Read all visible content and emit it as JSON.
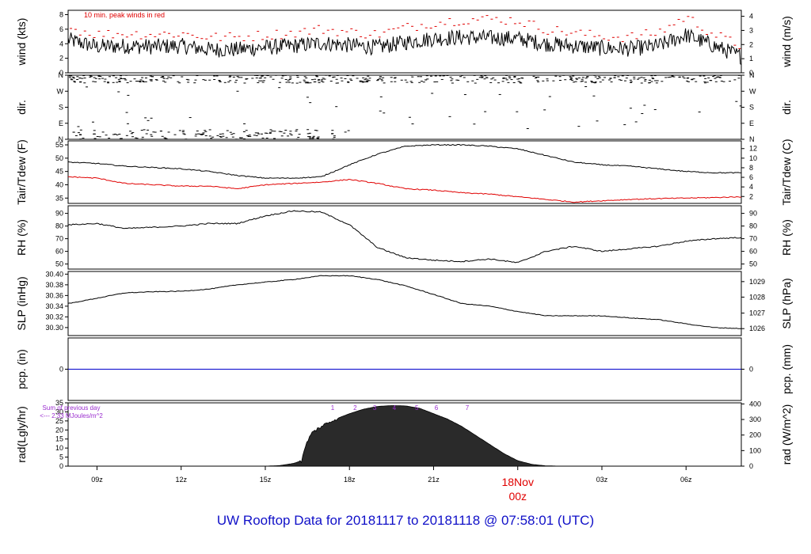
{
  "caption": "UW Rooftop Data for 20181117  to  20181118 @ 07:58:01  (UTC)",
  "colors": {
    "series": "#000000",
    "dew": "#e00000",
    "peak": "#e00000",
    "pcp": "#0000cc",
    "rad_note": "#9a2ccf",
    "date_marker": "#e00000",
    "caption": "#1010c8"
  },
  "time_axis": {
    "start_hour": 7.97,
    "end_hour": 31.97,
    "ticks": [
      {
        "hour": 9,
        "label": "09z"
      },
      {
        "hour": 12,
        "label": "12z"
      },
      {
        "hour": 15,
        "label": "15z"
      },
      {
        "hour": 18,
        "label": "18z"
      },
      {
        "hour": 21,
        "label": "21z"
      },
      {
        "hour": 24,
        "label": ""
      },
      {
        "hour": 27,
        "label": "03z"
      },
      {
        "hour": 30,
        "label": "06z"
      }
    ],
    "date_marker": {
      "hour": 24,
      "line1": "18Nov",
      "line2": "00z"
    }
  },
  "chart_data": [
    {
      "id": "wind",
      "type": "line",
      "ylabel_left": "wind (kts)",
      "ylabel_right": "wind (m/s)",
      "annotation": "10 min. peak winds in red",
      "ylim": [
        0,
        8.6
      ],
      "yticks_left": [
        {
          "v": 0,
          "l": "0"
        },
        {
          "v": 2,
          "l": "2"
        },
        {
          "v": 4,
          "l": "4"
        },
        {
          "v": 6,
          "l": "6"
        },
        {
          "v": 8,
          "l": "8"
        }
      ],
      "yticks_right": [
        {
          "v": 0,
          "l": "0"
        },
        {
          "v": 1.944,
          "l": "1"
        },
        {
          "v": 3.888,
          "l": "2"
        },
        {
          "v": 5.832,
          "l": "3"
        },
        {
          "v": 7.776,
          "l": "4"
        }
      ],
      "series": [
        {
          "role": "wind",
          "x": [
            8,
            9,
            10,
            11,
            12,
            13,
            14,
            15,
            16,
            17,
            18,
            19,
            20,
            21,
            22,
            23,
            24,
            25,
            26,
            27,
            28,
            29,
            30,
            31,
            32
          ],
          "y": [
            4.5,
            3.6,
            3.7,
            3.6,
            3.7,
            3.2,
            3.2,
            3.5,
            3.7,
            4.1,
            3.8,
            3.5,
            4.2,
            4.7,
            4.9,
            4.8,
            4.7,
            4.0,
            3.7,
            3.4,
            3.3,
            3.7,
            5.2,
            3.7,
            2.2
          ]
        },
        {
          "role": "peak",
          "x": [
            8,
            9,
            10,
            11,
            12,
            13,
            14,
            15,
            16,
            17,
            18,
            19,
            20,
            21,
            22,
            23,
            24,
            25,
            26,
            27,
            28,
            29,
            30,
            31,
            32
          ],
          "y": [
            6.2,
            5.3,
            5.4,
            5.3,
            5.4,
            4.9,
            4.9,
            5.2,
            5.5,
            6.0,
            5.6,
            5.3,
            6.2,
            6.9,
            7.3,
            7.4,
            7.2,
            6.0,
            5.5,
            5.0,
            4.9,
            5.5,
            7.7,
            5.3,
            3.6
          ]
        }
      ]
    },
    {
      "id": "dir",
      "type": "scatter",
      "ylabel_left": "dir.",
      "ylabel_right": "dir.",
      "ylim": [
        0,
        360
      ],
      "yticks_left": [
        {
          "v": 0,
          "l": "N"
        },
        {
          "v": 90,
          "l": "E"
        },
        {
          "v": 180,
          "l": "S"
        },
        {
          "v": 270,
          "l": "W"
        },
        {
          "v": 360,
          "l": "N"
        }
      ],
      "yticks_right": [
        {
          "v": 0,
          "l": "N"
        },
        {
          "v": 90,
          "l": "E"
        },
        {
          "v": 180,
          "l": "S"
        },
        {
          "v": 270,
          "l": "W"
        },
        {
          "v": 360,
          "l": "N"
        }
      ],
      "series": [
        {
          "role": "northerly",
          "x_range": [
            8,
            32
          ],
          "y_range": [
            315,
            360
          ],
          "count": 430
        },
        {
          "role": "near-north",
          "x_range": [
            8,
            18
          ],
          "y_range": [
            0,
            55
          ],
          "count": 150
        },
        {
          "role": "scattered",
          "x_range": [
            8,
            32
          ],
          "y_range": [
            60,
            300
          ],
          "count": 45
        }
      ]
    },
    {
      "id": "temp",
      "type": "line",
      "ylabel_left": "Tair/Tdew (F)",
      "ylabel_right": "Tair/Tdew (C)",
      "ylim": [
        33,
        56.5
      ],
      "yticks_left": [
        {
          "v": 35,
          "l": "35"
        },
        {
          "v": 40,
          "l": "40"
        },
        {
          "v": 45,
          "l": "45"
        },
        {
          "v": 50,
          "l": "50"
        },
        {
          "v": 55,
          "l": "55"
        }
      ],
      "yticks_right": [
        {
          "v": 35.6,
          "l": "2"
        },
        {
          "v": 39.2,
          "l": "4"
        },
        {
          "v": 42.8,
          "l": "6"
        },
        {
          "v": 46.4,
          "l": "8"
        },
        {
          "v": 50,
          "l": "10"
        },
        {
          "v": 53.6,
          "l": "12"
        }
      ],
      "series": [
        {
          "role": "tair",
          "x": [
            8,
            9,
            10,
            11,
            12,
            13,
            14,
            15,
            16,
            17,
            18,
            19,
            20,
            21,
            22,
            23,
            24,
            25,
            26,
            27,
            28,
            29,
            30,
            31,
            32
          ],
          "y": [
            48.5,
            48,
            47,
            46.5,
            46,
            45,
            43.5,
            42.5,
            42.5,
            43,
            47.5,
            51.5,
            54.5,
            55,
            55,
            54.5,
            53.5,
            51,
            48.5,
            47.5,
            47,
            46,
            45,
            44.5,
            44.5
          ]
        },
        {
          "role": "tdew",
          "x": [
            8,
            9,
            10,
            11,
            12,
            13,
            14,
            15,
            16,
            17,
            18,
            19,
            20,
            21,
            22,
            23,
            24,
            25,
            26,
            27,
            28,
            29,
            30,
            31,
            32
          ],
          "y": [
            43,
            42.5,
            40.5,
            40,
            39.5,
            39.5,
            38.5,
            40,
            40.5,
            41,
            42,
            40.5,
            38.5,
            38,
            37,
            36.5,
            35.5,
            34.5,
            33.5,
            34,
            34.5,
            34.8,
            35,
            35.2,
            35.5
          ]
        }
      ]
    },
    {
      "id": "rh",
      "type": "line",
      "ylabel_left": "RH (%)",
      "ylabel_right": "RH (%)",
      "ylim": [
        46,
        96
      ],
      "yticks_left": [
        {
          "v": 50,
          "l": "50"
        },
        {
          "v": 60,
          "l": "60"
        },
        {
          "v": 70,
          "l": "70"
        },
        {
          "v": 80,
          "l": "80"
        },
        {
          "v": 90,
          "l": "90"
        }
      ],
      "yticks_right": [
        {
          "v": 50,
          "l": "50"
        },
        {
          "v": 60,
          "l": "60"
        },
        {
          "v": 70,
          "l": "70"
        },
        {
          "v": 80,
          "l": "80"
        },
        {
          "v": 90,
          "l": "90"
        }
      ],
      "series": [
        {
          "role": "rh",
          "x": [
            8,
            9,
            10,
            11,
            12,
            13,
            14,
            15,
            16,
            17,
            18,
            19,
            20,
            21,
            22,
            23,
            24,
            25,
            26,
            27,
            28,
            29,
            30,
            31,
            32
          ],
          "y": [
            81,
            82,
            78,
            79,
            80,
            82,
            82,
            88,
            92,
            91,
            81,
            63,
            55,
            53,
            52,
            54,
            51,
            60,
            64,
            60,
            62,
            64,
            68,
            70,
            71
          ]
        }
      ]
    },
    {
      "id": "slp",
      "type": "line",
      "ylabel_left": "SLP (inHg)",
      "ylabel_right": "SLP (hPa)",
      "ylim": [
        30.285,
        30.405
      ],
      "yticks_left": [
        {
          "v": 30.3,
          "l": "30.30"
        },
        {
          "v": 30.32,
          "l": "30.32"
        },
        {
          "v": 30.34,
          "l": "30.34"
        },
        {
          "v": 30.36,
          "l": "30.36"
        },
        {
          "v": 30.38,
          "l": "30.38"
        },
        {
          "v": 30.4,
          "l": "30.40"
        }
      ],
      "yticks_right": [
        {
          "v": 30.298,
          "l": "1026"
        },
        {
          "v": 30.327,
          "l": "1027"
        },
        {
          "v": 30.357,
          "l": "1028"
        },
        {
          "v": 30.386,
          "l": "1029"
        }
      ],
      "series": [
        {
          "role": "slp",
          "x": [
            8,
            9,
            10,
            11,
            12,
            13,
            14,
            15,
            16,
            17,
            18,
            19,
            20,
            21,
            22,
            23,
            24,
            25,
            26,
            27,
            28,
            29,
            30,
            31,
            32
          ],
          "y": [
            30.345,
            30.355,
            30.365,
            30.367,
            30.368,
            30.372,
            30.38,
            30.385,
            30.39,
            30.397,
            30.397,
            30.39,
            30.378,
            30.362,
            30.345,
            30.34,
            30.33,
            30.322,
            30.322,
            30.322,
            30.318,
            30.315,
            30.307,
            30.3,
            30.298
          ]
        }
      ]
    },
    {
      "id": "pcp",
      "type": "line",
      "ylabel_left": "pcp. (in)",
      "ylabel_right": "pcp. (mm)",
      "ylim": [
        -1,
        1
      ],
      "yticks_left": [
        {
          "v": 0,
          "l": "0"
        }
      ],
      "yticks_right": [
        {
          "v": 0,
          "l": "0"
        }
      ],
      "series": [
        {
          "role": "pcp",
          "x": [
            8,
            32
          ],
          "y": [
            0,
            0
          ]
        }
      ]
    },
    {
      "id": "rad",
      "type": "area",
      "ylabel_left": "rad(Lgly/hr)",
      "ylabel_right": "rad (W/m^2)",
      "ylim": [
        0,
        35
      ],
      "note_line1": "Sum of previous day",
      "note_line2": "<--- 2.33 MJoules/m^2",
      "hour_markers": [
        "1",
        "2",
        "3",
        "4",
        "5",
        "6",
        "7"
      ],
      "hour_marker_hours": [
        17.4,
        18.2,
        18.9,
        19.6,
        20.4,
        21.1,
        22.2
      ],
      "yticks_left": [
        {
          "v": 0,
          "l": "0"
        },
        {
          "v": 5,
          "l": "5"
        },
        {
          "v": 10,
          "l": "10"
        },
        {
          "v": 15,
          "l": "15"
        },
        {
          "v": 20,
          "l": "20"
        },
        {
          "v": 25,
          "l": "25"
        },
        {
          "v": 30,
          "l": "30"
        },
        {
          "v": 35,
          "l": "35"
        }
      ],
      "yticks_right": [
        {
          "v": 0,
          "l": "0"
        },
        {
          "v": 8.6,
          "l": "100"
        },
        {
          "v": 17.2,
          "l": "200"
        },
        {
          "v": 25.8,
          "l": "300"
        },
        {
          "v": 34.4,
          "l": "400"
        }
      ],
      "series": [
        {
          "role": "rad",
          "x": [
            15,
            15.5,
            16,
            16.3,
            16.4,
            16.5,
            16.7,
            17,
            17.5,
            18,
            18.5,
            19,
            19.5,
            20,
            20.5,
            21,
            21.5,
            22,
            22.5,
            23,
            23.5,
            24,
            24.5,
            25,
            25.5
          ],
          "y": [
            0,
            0.3,
            1.5,
            3,
            9,
            14,
            19,
            22,
            26,
            29,
            31.5,
            33,
            33.5,
            33.3,
            32,
            29,
            26,
            22,
            17,
            12,
            7,
            3,
            1,
            0.2,
            0
          ]
        }
      ]
    }
  ]
}
